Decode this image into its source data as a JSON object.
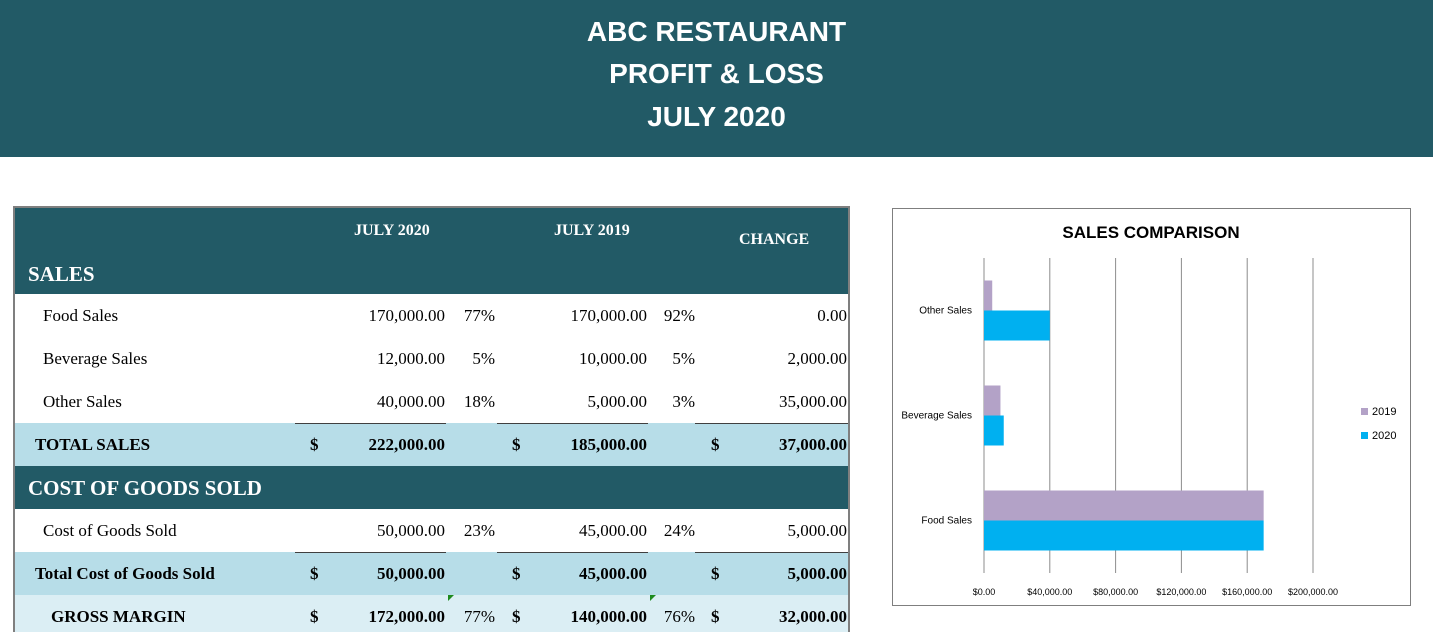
{
  "header": {
    "line1": "ABC RESTAURANT",
    "line2": "PROFIT & LOSS",
    "line3": "JULY 2020"
  },
  "table": {
    "col_2020": "JULY 2020",
    "col_2019": "JULY 2019",
    "col_change": "CHANGE",
    "currency": "$",
    "sales_title": "SALES",
    "sales_rows": [
      {
        "label": "Food Sales",
        "v2020": "170,000.00",
        "p2020": "77%",
        "v2019": "170,000.00",
        "p2019": "92%",
        "change": "0.00"
      },
      {
        "label": "Beverage Sales",
        "v2020": "12,000.00",
        "p2020": "5%",
        "v2019": "10,000.00",
        "p2019": "5%",
        "change": "2,000.00"
      },
      {
        "label": "Other Sales",
        "v2020": "40,000.00",
        "p2020": "18%",
        "v2019": "5,000.00",
        "p2019": "3%",
        "change": "35,000.00"
      }
    ],
    "total_sales": {
      "label": "TOTAL SALES",
      "v2020": "222,000.00",
      "v2019": "185,000.00",
      "change": "37,000.00"
    },
    "cogs_title": "COST OF GOODS SOLD",
    "cogs_rows": [
      {
        "label": "Cost of Goods Sold",
        "v2020": "50,000.00",
        "p2020": "23%",
        "v2019": "45,000.00",
        "p2019": "24%",
        "change": "5,000.00"
      }
    ],
    "total_cogs": {
      "label": "Total Cost of Goods Sold",
      "v2020": "50,000.00",
      "v2019": "45,000.00",
      "change": "5,000.00"
    },
    "gross_margin": {
      "label": "GROSS MARGIN",
      "v2020": "172,000.00",
      "p2020": "77%",
      "v2019": "140,000.00",
      "p2019": "76%",
      "change": "32,000.00"
    }
  },
  "chart_data": {
    "type": "bar",
    "orientation": "horizontal",
    "title": "SALES COMPARISON",
    "categories": [
      "Food Sales",
      "Beverage Sales",
      "Other Sales"
    ],
    "series": [
      {
        "name": "2019",
        "values": [
          170000,
          10000,
          5000
        ],
        "color": "#b3a2c7"
      },
      {
        "name": "2020",
        "values": [
          170000,
          12000,
          40000
        ],
        "color": "#00b0f0"
      }
    ],
    "xlim": [
      0,
      200000
    ],
    "tick_labels": [
      "$0.00",
      "$40,000.00",
      "$80,000.00",
      "$120,000.00",
      "$160,000.00",
      "$200,000.00"
    ],
    "grid": true,
    "legend": "right"
  },
  "colors": {
    "header_bg": "#225a66",
    "total_row_bg": "#b7dde8",
    "margin_row_bg": "#dbeef4",
    "series_2019": "#b3a2c7",
    "series_2020": "#00b0f0"
  }
}
